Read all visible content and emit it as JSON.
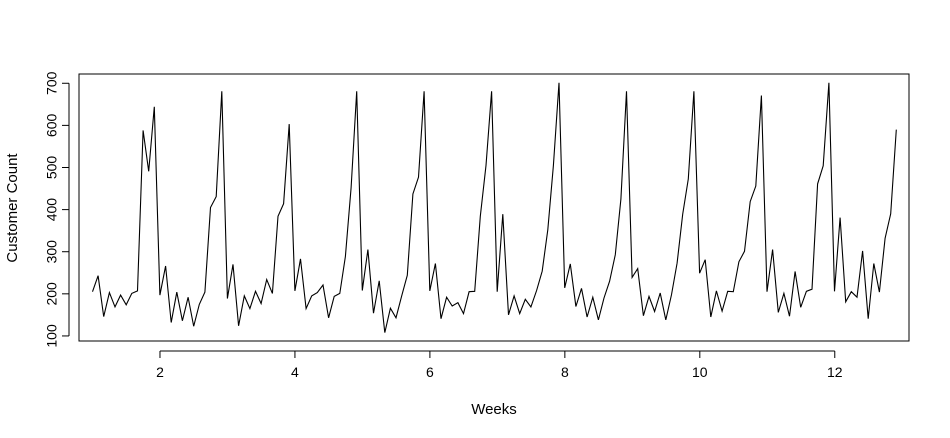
{
  "chart_data": {
    "type": "line",
    "title": "",
    "xlabel": "Weeks",
    "ylabel": "Customer Count",
    "xlim": [
      0.8,
      13.1
    ],
    "ylim": [
      88,
      722
    ],
    "x_ticks": [
      2,
      4,
      6,
      8,
      10,
      12
    ],
    "y_ticks": [
      100,
      200,
      300,
      400,
      500,
      600,
      700
    ],
    "x_tick_labels": [
      "2",
      "4",
      "6",
      "8",
      "10",
      "12"
    ],
    "y_tick_labels": [
      "100",
      "200",
      "300",
      "400",
      "500",
      "600",
      "700"
    ],
    "grid": false,
    "legend": "none",
    "line_color": "#000000",
    "series": [
      {
        "x_start": 1.0,
        "x_step": 0.0833,
        "values": [
          205,
          243,
          146,
          203,
          169,
          197,
          174,
          201,
          207,
          588,
          491,
          644,
          197,
          266,
          132,
          204,
          136,
          192,
          123,
          175,
          204,
          405,
          431,
          681,
          189,
          270,
          124,
          195,
          165,
          206,
          177,
          234,
          201,
          384,
          414,
          603,
          207,
          283,
          165,
          195,
          203,
          221,
          143,
          194,
          201,
          289,
          452,
          681,
          208,
          305,
          154,
          231,
          108,
          166,
          143,
          195,
          244,
          437,
          477,
          681,
          207,
          272,
          141,
          192,
          171,
          179,
          153,
          205,
          206,
          384,
          505,
          681,
          205,
          389,
          150,
          195,
          153,
          187,
          169,
          208,
          254,
          352,
          505,
          701,
          214,
          271,
          170,
          213,
          145,
          192,
          138,
          190,
          230,
          293,
          425,
          681,
          239,
          260,
          148,
          194,
          158,
          202,
          138,
          198,
          273,
          389,
          473,
          681,
          249,
          281,
          145,
          207,
          159,
          206,
          205,
          276,
          301,
          419,
          456,
          671,
          205,
          305,
          156,
          201,
          147,
          253,
          168,
          206,
          211,
          461,
          504,
          701,
          206,
          381,
          181,
          205,
          192,
          302,
          141,
          272,
          204,
          332,
          390,
          590
        ]
      }
    ]
  }
}
